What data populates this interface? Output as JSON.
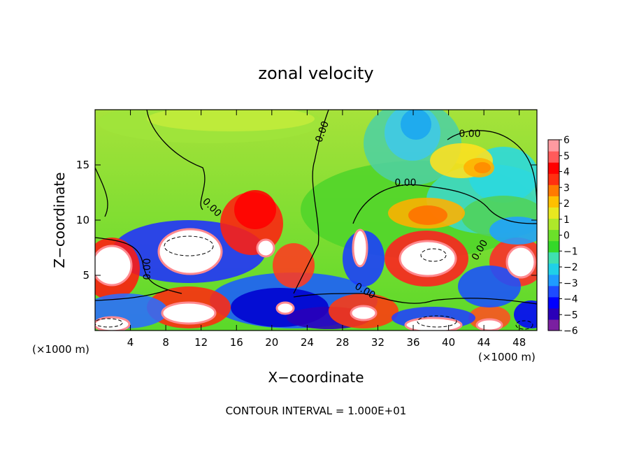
{
  "chart_data": {
    "type": "heatmap",
    "title": "zonal velocity",
    "xlabel": "X−coordinate",
    "ylabel": "Z−coordinate",
    "x_unit_left": "(×1000 m)",
    "x_unit_right": "(×1000 m)",
    "footer": "CONTOUR INTERVAL = 1.000E+01",
    "xlim": [
      0,
      50
    ],
    "ylim": [
      0,
      20
    ],
    "x_ticks": [
      "4",
      "8",
      "12",
      "16",
      "20",
      "24",
      "28",
      "32",
      "36",
      "40",
      "44",
      "48"
    ],
    "y_ticks": [
      "5",
      "10",
      "15"
    ],
    "x_tick_values": [
      4,
      8,
      12,
      16,
      20,
      24,
      28,
      32,
      36,
      40,
      44,
      48
    ],
    "y_tick_values": [
      5,
      10,
      15
    ],
    "contour_label": "0.00",
    "colorbar": {
      "ticks": [
        "6",
        "5",
        "4",
        "3",
        "2",
        "1",
        "0",
        "−1",
        "−2",
        "−3",
        "−4",
        "−5",
        "−6"
      ],
      "tick_values": [
        6,
        5,
        4,
        3,
        2,
        1,
        0,
        -1,
        -2,
        -3,
        -4,
        -5,
        -6
      ],
      "range": [
        -6,
        6
      ],
      "colors": [
        "#7a1fa0",
        "#2a00b8",
        "#0000ff",
        "#1e4bff",
        "#1f9bff",
        "#20d0e8",
        "#3fe0b0",
        "#34d829",
        "#6be02a",
        "#aee82a",
        "#e8e820",
        "#ffc000",
        "#ff7a00",
        "#ff3010",
        "#ff0000",
        "#ff5a5a",
        "#ff9aa0"
      ]
    }
  }
}
